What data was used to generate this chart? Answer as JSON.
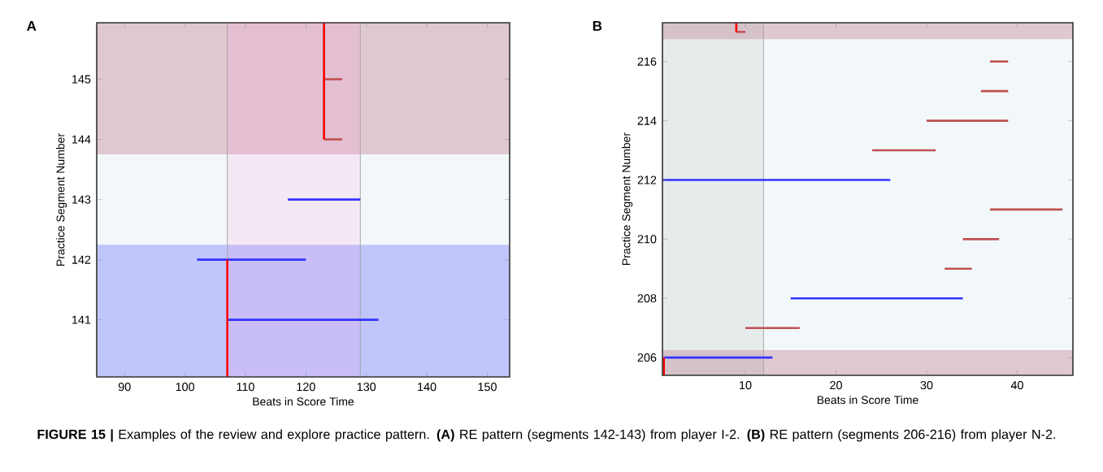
{
  "chart_data": [
    {
      "type": "line",
      "title": "A",
      "xlabel": "Beats in Score Time",
      "ylabel": "Practice Segment Number",
      "xlim": [
        85.4,
        153.7
      ],
      "ylim": [
        140.05,
        145.94
      ],
      "xticks": [
        90,
        100,
        110,
        120,
        130,
        140,
        150
      ],
      "yticks": [
        141,
        142,
        143,
        144,
        145
      ],
      "bands": [
        {
          "axis": "y",
          "from": 143.75,
          "to": 145.94,
          "color": "#dfc8cf"
        },
        {
          "axis": "y",
          "from": 142.25,
          "to": 143.75,
          "color": "#f2f8fa"
        },
        {
          "axis": "y",
          "from": 140.05,
          "to": 142.25,
          "color": "#c0c6fc"
        },
        {
          "axis": "x",
          "from": 107,
          "to": 129,
          "color": "#ff90e0"
        }
      ],
      "ref_lines": [
        {
          "axis": "x",
          "value": 107,
          "color": "#a6a6a6"
        },
        {
          "axis": "x",
          "value": 129,
          "color": "#a6a6a6"
        }
      ],
      "series": [
        {
          "color": "#c05050",
          "x": [
            123,
            126
          ],
          "values": [
            145,
            145
          ]
        },
        {
          "color": "#c05050",
          "x": [
            123,
            126
          ],
          "values": [
            144,
            144
          ]
        },
        {
          "color": "#3333ff",
          "x": [
            117,
            129
          ],
          "values": [
            143,
            143
          ]
        },
        {
          "color": "#3333ff",
          "x": [
            102,
            120
          ],
          "values": [
            142,
            142
          ]
        },
        {
          "color": "#3333ff",
          "x": [
            107,
            132
          ],
          "values": [
            141,
            141
          ]
        },
        {
          "color": "#ff0000",
          "x": [
            123,
            123
          ],
          "values": [
            144,
            145.94
          ]
        },
        {
          "color": "#ff0000",
          "x": [
            107,
            107
          ],
          "values": [
            140.05,
            142
          ]
        }
      ],
      "annotations": [
        "**FIGURE 15 |** Examples of the review and explore practice pattern. **(A)** RE pattern (segments 142-143) from player I-2. **(B)** RE pattern (segments 206-216) from player N-2."
      ]
    },
    {
      "type": "line",
      "title": "B",
      "xlabel": "Beats in Score Time",
      "ylabel": "Practice Segment Number",
      "xlim": [
        0.85,
        46.15
      ],
      "ylim": [
        205.4,
        217.31
      ],
      "xticks": [
        10,
        20,
        30,
        40
      ],
      "yticks": [
        206,
        208,
        210,
        212,
        214,
        216
      ],
      "bands": [
        {
          "axis": "y",
          "from": 216.75,
          "to": 217.31,
          "color": "#dfc8cf"
        },
        {
          "axis": "y",
          "from": 206.25,
          "to": 216.75,
          "color": "#f2f8fa"
        },
        {
          "axis": "y",
          "from": 205.4,
          "to": 206.25,
          "color": "#dfc8cf"
        },
        {
          "axis": "x",
          "from": 0.85,
          "to": 12,
          "color": "#a0a0a0"
        }
      ],
      "ref_lines": [
        {
          "axis": "x",
          "value": 12,
          "color": "#a6a6a6"
        }
      ],
      "series": [
        {
          "color": "#c05050",
          "x": [
            9,
            10
          ],
          "values": [
            217,
            217
          ]
        },
        {
          "color": "#c05050",
          "x": [
            37,
            39
          ],
          "values": [
            216,
            216
          ]
        },
        {
          "color": "#c05050",
          "x": [
            36,
            39
          ],
          "values": [
            215,
            215
          ]
        },
        {
          "color": "#c05050",
          "x": [
            30,
            39
          ],
          "values": [
            214,
            214
          ]
        },
        {
          "color": "#c05050",
          "x": [
            24,
            31
          ],
          "values": [
            213,
            213
          ]
        },
        {
          "color": "#3333ff",
          "x": [
            0.85,
            26
          ],
          "values": [
            212,
            212
          ]
        },
        {
          "color": "#c05050",
          "x": [
            37,
            45
          ],
          "values": [
            211,
            211
          ]
        },
        {
          "color": "#c05050",
          "x": [
            34,
            38
          ],
          "values": [
            210,
            210
          ]
        },
        {
          "color": "#c05050",
          "x": [
            32,
            35
          ],
          "values": [
            209,
            209
          ]
        },
        {
          "color": "#3333ff",
          "x": [
            15,
            34
          ],
          "values": [
            208,
            208
          ]
        },
        {
          "color": "#c05050",
          "x": [
            10,
            16
          ],
          "values": [
            207,
            207
          ]
        },
        {
          "color": "#3333ff",
          "x": [
            1,
            13
          ],
          "values": [
            206,
            206
          ]
        },
        {
          "color": "#ff0000",
          "x": [
            9,
            9
          ],
          "values": [
            217,
            217.31
          ]
        },
        {
          "color": "#ff0000",
          "x": [
            1,
            1
          ],
          "values": [
            205.4,
            206
          ]
        }
      ]
    }
  ]
}
